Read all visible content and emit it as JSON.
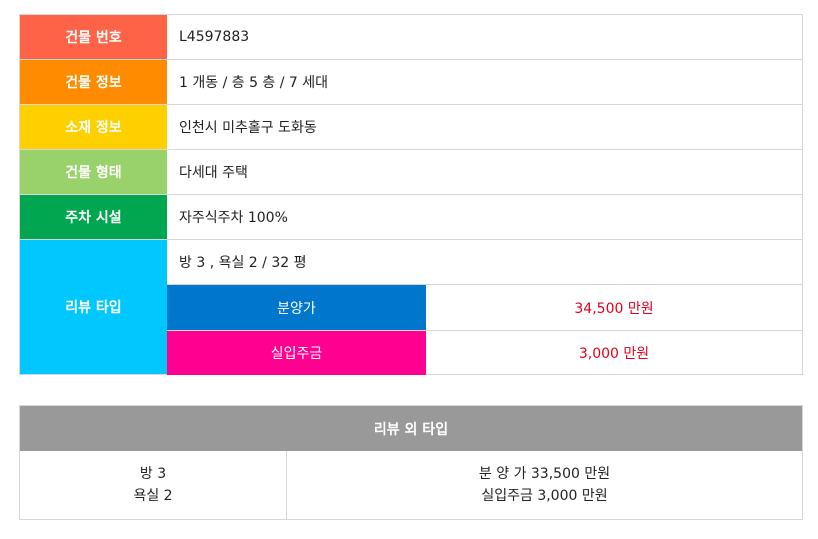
{
  "colors": {
    "building_no": "#ff6347",
    "building_info": "#ff8c00",
    "location": "#ffd000",
    "building_type": "#99d26b",
    "parking": "#00a650",
    "review_type": "#00c8ff",
    "sale_price": "#0077cc",
    "down_payment": "#ff0090",
    "price_text": "#e2001a",
    "outer_header": "#999999"
  },
  "info": {
    "building_no": {
      "label": "건물 번호",
      "value": "L4597883"
    },
    "building_info": {
      "label": "건물 정보",
      "value": "1 개동 / 층 5 층 / 7 세대"
    },
    "location": {
      "label": "소재 정보",
      "value": "인천시 미추홀구 도화동"
    },
    "building_type": {
      "label": "건물 형태",
      "value": "다세대 주택"
    },
    "parking": {
      "label": "주차 시설",
      "value": "자주식주차 100%"
    }
  },
  "review": {
    "label": "리뷰 타입",
    "rooms": "방 3 , 욕실 2 / 32 평",
    "sale_price_label": "분양가",
    "sale_price_value": "34,500 만원",
    "down_payment_label": "실입주금",
    "down_payment_value": "3,000 만원"
  },
  "outer": {
    "header": "리뷰 외 타입",
    "rooms_line1": "방 3",
    "rooms_line2": "욕실 2",
    "price_line1": "분 양 가 33,500 만원",
    "price_line2": "실입주금 3,000 만원"
  }
}
